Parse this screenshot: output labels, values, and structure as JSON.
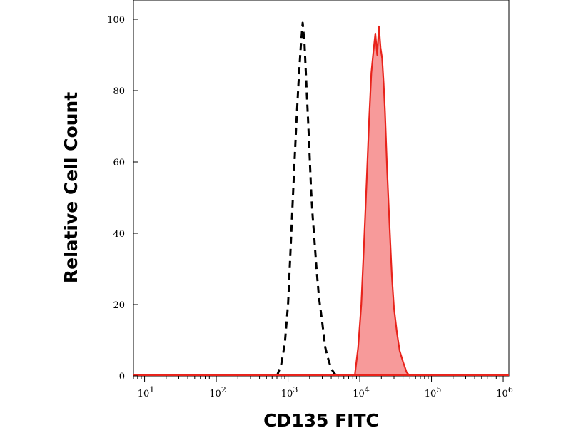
{
  "chart_data": {
    "type": "area",
    "title": "",
    "xlabel": "CD135 FITC",
    "ylabel": "Relative Cell Count",
    "x_scale": "log",
    "xlim": [
      7,
      1200000
    ],
    "ylim": [
      0,
      100
    ],
    "x_ticks": [
      10,
      100,
      1000,
      10000,
      100000,
      1000000
    ],
    "y_ticks": [
      0,
      20,
      40,
      60,
      80,
      100
    ],
    "grid": false,
    "legend": "none",
    "series": [
      {
        "style": "dashed",
        "color": "#000000",
        "x": [
          700,
          800,
          900,
          1000,
          1100,
          1200,
          1300,
          1400,
          1500,
          1600,
          1700,
          1800,
          1900,
          2000,
          2100,
          2200,
          2300,
          2500,
          2700,
          3000,
          3300,
          3600,
          4000,
          4500,
          5000
        ],
        "y": [
          0,
          3,
          9,
          20,
          38,
          55,
          70,
          82,
          92,
          99,
          93,
          82,
          72,
          62,
          52,
          45,
          40,
          30,
          22,
          15,
          8,
          5,
          2,
          0.5,
          0
        ]
      },
      {
        "style": "filled",
        "color": "#e8231b",
        "fill": "#f79a9a",
        "x": [
          8500,
          9500,
          10500,
          11500,
          12500,
          13500,
          14500,
          15500,
          16500,
          17500,
          18500,
          19500,
          20500,
          21500,
          22500,
          24000,
          26000,
          28000,
          30000,
          33000,
          36000,
          40000,
          45000,
          50000
        ],
        "y": [
          0,
          8,
          20,
          38,
          55,
          72,
          85,
          91,
          96,
          90,
          98,
          92,
          89,
          82,
          74,
          58,
          42,
          28,
          19,
          12,
          7,
          4,
          1,
          0
        ]
      }
    ]
  }
}
